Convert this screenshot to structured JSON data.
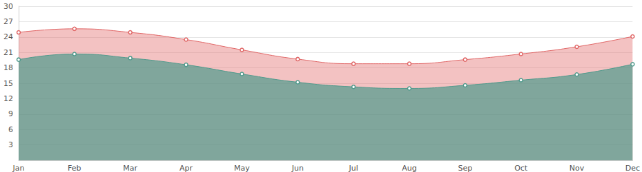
{
  "chart_data": {
    "type": "area",
    "categories": [
      "Jan",
      "Feb",
      "Mar",
      "Apr",
      "May",
      "Jun",
      "Jul",
      "Aug",
      "Sep",
      "Oct",
      "Nov",
      "Dec"
    ],
    "series": [
      {
        "color": "#e06666",
        "marker": "circle",
        "values": [
          24.9,
          25.6,
          24.9,
          23.5,
          21.5,
          19.7,
          18.8,
          18.8,
          19.6,
          20.7,
          22.1,
          24.1
        ]
      },
      {
        "color": "#4f9a8c",
        "marker": "circle",
        "values": [
          19.6,
          20.7,
          19.9,
          18.6,
          16.8,
          15.2,
          14.3,
          14.0,
          14.6,
          15.6,
          16.7,
          18.7
        ]
      }
    ],
    "ylim": [
      0,
      30
    ],
    "yticks": [
      3,
      6,
      9,
      12,
      15,
      18,
      21,
      24,
      27,
      30
    ],
    "grid": true
  }
}
